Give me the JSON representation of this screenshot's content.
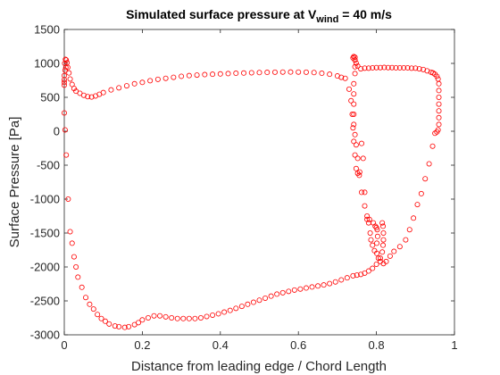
{
  "chart_data": {
    "type": "scatter",
    "title": {
      "prefix": "Simulated surface pressure at V",
      "subscript": "wind",
      "suffix": " = 40 m/s"
    },
    "xlabel": "Distance from leading edge / Chord Length",
    "ylabel": "Surface Pressure [Pa]",
    "xlim": [
      0,
      1
    ],
    "ylim": [
      -3000,
      1500
    ],
    "xticks": [
      0,
      0.2,
      0.4,
      0.6,
      0.8,
      1
    ],
    "xtick_labels": [
      "0",
      "0.2",
      "0.4",
      "0.6",
      "0.8",
      "1"
    ],
    "yticks": [
      -3000,
      -2500,
      -2000,
      -1500,
      -1000,
      -500,
      0,
      500,
      1000,
      1500
    ],
    "ytick_labels": [
      "-3000",
      "-2500",
      "-2000",
      "-1500",
      "-1000",
      "-500",
      "0",
      "500",
      "1000",
      "1500"
    ],
    "grid": false,
    "marker": "circle-open",
    "color": "#ff0000",
    "series": [
      {
        "points": [
          [
            0.0,
            820
          ],
          [
            0.001,
            1000
          ],
          [
            0.003,
            1060
          ],
          [
            0.005,
            1050
          ],
          [
            0.007,
            1010
          ],
          [
            0.009,
            940
          ],
          [
            0.012,
            860
          ],
          [
            0.015,
            770
          ],
          [
            0.02,
            690
          ],
          [
            0.025,
            630
          ],
          [
            0.03,
            590
          ],
          [
            0.04,
            560
          ],
          [
            0.05,
            530
          ],
          [
            0.06,
            510
          ],
          [
            0.07,
            505
          ],
          [
            0.08,
            520
          ],
          [
            0.09,
            545
          ],
          [
            0.1,
            570
          ],
          [
            0.12,
            610
          ],
          [
            0.14,
            640
          ],
          [
            0.16,
            670
          ],
          [
            0.18,
            700
          ],
          [
            0.2,
            720
          ],
          [
            0.22,
            745
          ],
          [
            0.24,
            765
          ],
          [
            0.26,
            780
          ],
          [
            0.28,
            795
          ],
          [
            0.3,
            810
          ],
          [
            0.32,
            820
          ],
          [
            0.34,
            828
          ],
          [
            0.36,
            835
          ],
          [
            0.38,
            840
          ],
          [
            0.4,
            845
          ],
          [
            0.42,
            850
          ],
          [
            0.44,
            855
          ],
          [
            0.46,
            858
          ],
          [
            0.48,
            862
          ],
          [
            0.5,
            865
          ],
          [
            0.52,
            868
          ],
          [
            0.54,
            870
          ],
          [
            0.56,
            872
          ],
          [
            0.58,
            873
          ],
          [
            0.6,
            872
          ],
          [
            0.62,
            870
          ],
          [
            0.64,
            865
          ],
          [
            0.66,
            855
          ],
          [
            0.68,
            840
          ],
          [
            0.7,
            815
          ],
          [
            0.71,
            795
          ],
          [
            0.72,
            780
          ],
          [
            0.73,
            620
          ],
          [
            0.735,
            450
          ],
          [
            0.738,
            250
          ],
          [
            0.74,
            50
          ],
          [
            0.742,
            -150
          ],
          [
            0.745,
            -350
          ],
          [
            0.748,
            -550
          ],
          [
            0.752,
            -620
          ],
          [
            0.757,
            -600
          ],
          [
            0.762,
            -180
          ],
          [
            0.766,
            -400
          ],
          [
            0.77,
            -900
          ],
          [
            0.776,
            -1300
          ],
          [
            0.78,
            -1350
          ],
          [
            0.784,
            -1500
          ],
          [
            0.786,
            -1600
          ],
          [
            0.79,
            -1680
          ],
          [
            0.795,
            -1760
          ],
          [
            0.801,
            -1800
          ],
          [
            0.805,
            -1870
          ],
          [
            0.81,
            -1920
          ],
          [
            0.818,
            -1950
          ],
          [
            0.825,
            -1920
          ],
          [
            0.835,
            -1840
          ],
          [
            0.845,
            -1770
          ],
          [
            0.86,
            -1700
          ],
          [
            0.875,
            -1600
          ],
          [
            0.885,
            -1450
          ],
          [
            0.895,
            -1280
          ],
          [
            0.905,
            -1080
          ],
          [
            0.915,
            -920
          ],
          [
            0.925,
            -700
          ],
          [
            0.935,
            -480
          ],
          [
            0.944,
            -220
          ],
          [
            0.95,
            -30
          ],
          [
            0.955,
            -10
          ],
          [
            0.958,
            20
          ],
          [
            0.74,
            1080
          ],
          [
            0.745,
            1050
          ],
          [
            0.748,
            1005
          ],
          [
            0.752,
            960
          ],
          [
            0.76,
            920
          ],
          [
            0.77,
            930
          ],
          [
            0.78,
            930
          ],
          [
            0.79,
            935
          ],
          [
            0.8,
            938
          ],
          [
            0.81,
            938
          ],
          [
            0.82,
            940
          ],
          [
            0.83,
            938
          ],
          [
            0.84,
            938
          ],
          [
            0.85,
            935
          ],
          [
            0.86,
            935
          ],
          [
            0.87,
            935
          ],
          [
            0.88,
            935
          ],
          [
            0.89,
            930
          ],
          [
            0.9,
            930
          ],
          [
            0.91,
            920
          ],
          [
            0.92,
            910
          ],
          [
            0.93,
            890
          ],
          [
            0.94,
            870
          ],
          [
            0.945,
            860
          ],
          [
            0.95,
            840
          ],
          [
            0.955,
            810
          ],
          [
            0.958,
            770
          ],
          [
            0.96,
            700
          ],
          [
            0.96,
            600
          ],
          [
            0.96,
            500
          ],
          [
            0.96,
            400
          ],
          [
            0.96,
            300
          ],
          [
            0.96,
            200
          ],
          [
            0.96,
            100
          ],
          [
            0.742,
            1100
          ],
          [
            0.745,
            1090
          ],
          [
            0.745,
            1050
          ],
          [
            0.745,
            950
          ],
          [
            0.745,
            850
          ],
          [
            0.742,
            700
          ],
          [
            0.742,
            550
          ],
          [
            0.742,
            400
          ],
          [
            0.742,
            250
          ],
          [
            0.742,
            100
          ],
          [
            0.745,
            -50
          ],
          [
            0.748,
            -200
          ],
          [
            0.752,
            -400
          ],
          [
            0.756,
            -650
          ],
          [
            0.762,
            -900
          ],
          [
            0.77,
            -1100
          ],
          [
            0.776,
            -1250
          ],
          [
            0.782,
            -1300
          ],
          [
            0.792,
            -1350
          ],
          [
            0.797,
            -1400
          ],
          [
            0.8,
            -1420
          ],
          [
            0.802,
            -1450
          ],
          [
            0.803,
            -1550
          ],
          [
            0.801,
            -1650
          ],
          [
            0.0,
            270
          ],
          [
            0.002,
            20
          ],
          [
            0.005,
            -350
          ],
          [
            0.01,
            -1000
          ],
          [
            0.015,
            -1480
          ],
          [
            0.02,
            -1650
          ],
          [
            0.025,
            -1850
          ],
          [
            0.03,
            -2000
          ],
          [
            0.035,
            -2150
          ],
          [
            0.045,
            -2300
          ],
          [
            0.055,
            -2450
          ],
          [
            0.065,
            -2550
          ],
          [
            0.075,
            -2620
          ],
          [
            0.085,
            -2700
          ],
          [
            0.095,
            -2760
          ],
          [
            0.105,
            -2800
          ],
          [
            0.115,
            -2840
          ],
          [
            0.13,
            -2870
          ],
          [
            0.14,
            -2880
          ],
          [
            0.155,
            -2890
          ],
          [
            0.165,
            -2880
          ],
          [
            0.18,
            -2850
          ],
          [
            0.19,
            -2820
          ],
          [
            0.2,
            -2780
          ],
          [
            0.215,
            -2750
          ],
          [
            0.23,
            -2720
          ],
          [
            0.245,
            -2720
          ],
          [
            0.26,
            -2735
          ],
          [
            0.275,
            -2750
          ],
          [
            0.29,
            -2760
          ],
          [
            0.305,
            -2760
          ],
          [
            0.32,
            -2760
          ],
          [
            0.335,
            -2760
          ],
          [
            0.35,
            -2750
          ],
          [
            0.365,
            -2730
          ],
          [
            0.38,
            -2710
          ],
          [
            0.395,
            -2690
          ],
          [
            0.41,
            -2665
          ],
          [
            0.425,
            -2640
          ],
          [
            0.44,
            -2610
          ],
          [
            0.455,
            -2580
          ],
          [
            0.47,
            -2550
          ],
          [
            0.485,
            -2520
          ],
          [
            0.5,
            -2490
          ],
          [
            0.515,
            -2460
          ],
          [
            0.53,
            -2430
          ],
          [
            0.545,
            -2400
          ],
          [
            0.56,
            -2380
          ],
          [
            0.575,
            -2360
          ],
          [
            0.59,
            -2340
          ],
          [
            0.605,
            -2325
          ],
          [
            0.62,
            -2310
          ],
          [
            0.635,
            -2295
          ],
          [
            0.65,
            -2280
          ],
          [
            0.665,
            -2265
          ],
          [
            0.68,
            -2245
          ],
          [
            0.695,
            -2220
          ],
          [
            0.71,
            -2190
          ],
          [
            0.725,
            -2160
          ],
          [
            0.74,
            -2130
          ],
          [
            0.75,
            -2120
          ],
          [
            0.76,
            -2110
          ],
          [
            0.77,
            -2090
          ],
          [
            0.78,
            -2060
          ],
          [
            0.79,
            -2020
          ],
          [
            0.8,
            -1960
          ],
          [
            0.81,
            -1870
          ],
          [
            0.815,
            -1780
          ],
          [
            0.817,
            -1680
          ],
          [
            0.818,
            -1600
          ],
          [
            0.818,
            -1500
          ],
          [
            0.817,
            -1400
          ],
          [
            0.815,
            -1350
          ],
          [
            0.0,
            680
          ],
          [
            0.0,
            720
          ],
          [
            0.0,
            760
          ],
          [
            0.002,
            900
          ],
          [
            0.004,
            940
          ]
        ]
      }
    ]
  }
}
